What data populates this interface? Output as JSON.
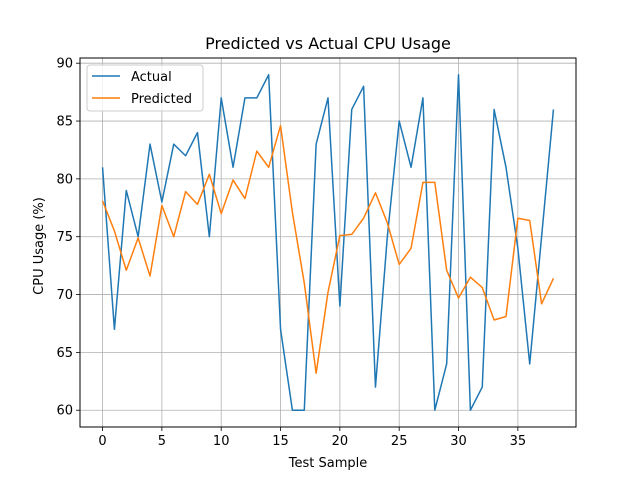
{
  "chart_data": {
    "type": "line",
    "title": "Predicted vs Actual CPU Usage",
    "xlabel": "Test Sample",
    "ylabel": "CPU Usage (%)",
    "xlim": [
      -1.9,
      39.9
    ],
    "ylim": [
      58.55,
      90.45
    ],
    "xticks": [
      0,
      5,
      10,
      15,
      20,
      25,
      30,
      35
    ],
    "yticks": [
      60,
      65,
      70,
      75,
      80,
      85,
      90
    ],
    "grid": true,
    "legend_position": "upper-left",
    "x": [
      0,
      1,
      2,
      3,
      4,
      5,
      6,
      7,
      8,
      9,
      10,
      11,
      12,
      13,
      14,
      15,
      16,
      17,
      18,
      19,
      20,
      21,
      22,
      23,
      24,
      25,
      26,
      27,
      28,
      29,
      30,
      31,
      32,
      33,
      34,
      35,
      36,
      37,
      38
    ],
    "series": [
      {
        "name": "Actual",
        "color": "#1f77b4",
        "values": [
          81,
          67,
          79,
          75,
          83,
          78,
          83,
          82,
          84,
          75,
          87,
          81,
          87,
          87,
          89,
          67,
          60,
          60,
          83,
          87,
          69,
          86,
          88,
          62,
          75,
          85,
          81,
          87,
          60,
          64,
          89,
          60,
          62,
          86,
          81,
          74,
          64,
          75,
          86
        ]
      },
      {
        "name": "Predicted",
        "color": "#ff7f0e",
        "values": [
          78.1,
          75.5,
          72.1,
          74.9,
          71.6,
          77.7,
          75.0,
          78.9,
          77.8,
          80.4,
          77.0,
          79.9,
          78.3,
          82.4,
          81.0,
          84.6,
          77.1,
          71.0,
          63.2,
          70.2,
          75.1,
          75.2,
          76.6,
          78.8,
          76.2,
          72.6,
          74.0,
          79.7,
          79.7,
          72.1,
          69.7,
          71.5,
          70.6,
          67.8,
          68.1,
          76.6,
          76.4,
          69.2,
          71.4
        ]
      }
    ]
  }
}
